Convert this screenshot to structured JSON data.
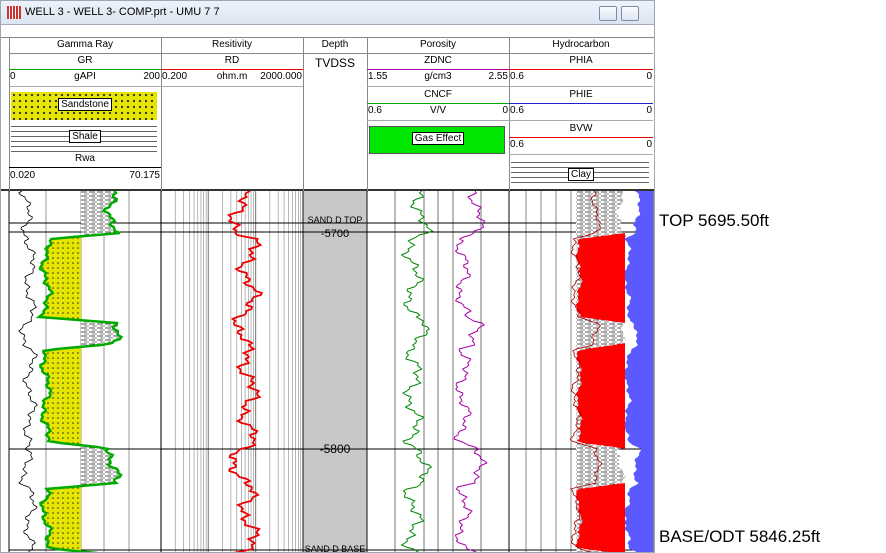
{
  "window": {
    "title": "WELL 3 - WELL 3- COMP.prt - UMU 7 7"
  },
  "tracks": [
    {
      "title": "Gamma Ray",
      "curves": [
        {
          "name": "GR",
          "min": "0",
          "unit": "gAPI",
          "max": "200"
        }
      ],
      "legends": [
        "Sandstone",
        "Shale"
      ],
      "extra": {
        "name": "Rwa",
        "min": "0.020",
        "max": "70.175"
      }
    },
    {
      "title": "Resitivity",
      "curves": [
        {
          "name": "RD",
          "min": "0.200",
          "unit": "ohm.m",
          "max": "2000.000"
        }
      ]
    },
    {
      "title": "Depth",
      "unit": "TVDSS"
    },
    {
      "title": "Porosity",
      "curves": [
        {
          "name": "ZDNC",
          "min": "1.55",
          "unit": "g/cm3",
          "max": "2.55"
        },
        {
          "name": "CNCF",
          "min": "0.6",
          "unit": "V/V",
          "max": "0"
        }
      ],
      "legends": [
        "Gas Effect"
      ]
    },
    {
      "title": "Hydrocarbon",
      "curves": [
        {
          "name": "PHIA",
          "min": "0.6",
          "max": "0"
        },
        {
          "name": "PHIE",
          "min": "0.6",
          "max": "0"
        },
        {
          "name": "BVW",
          "min": "0.6",
          "max": "0"
        }
      ],
      "legends": [
        "Clay"
      ]
    }
  ],
  "depth_labels": {
    "top": "SAND D TOP",
    "d1": "-5700",
    "d2": "-5800",
    "base": "SAND D BASE"
  },
  "annotations": {
    "top": "TOP 5695.50ft",
    "base": "BASE/ODT 5846.25ft"
  }
}
